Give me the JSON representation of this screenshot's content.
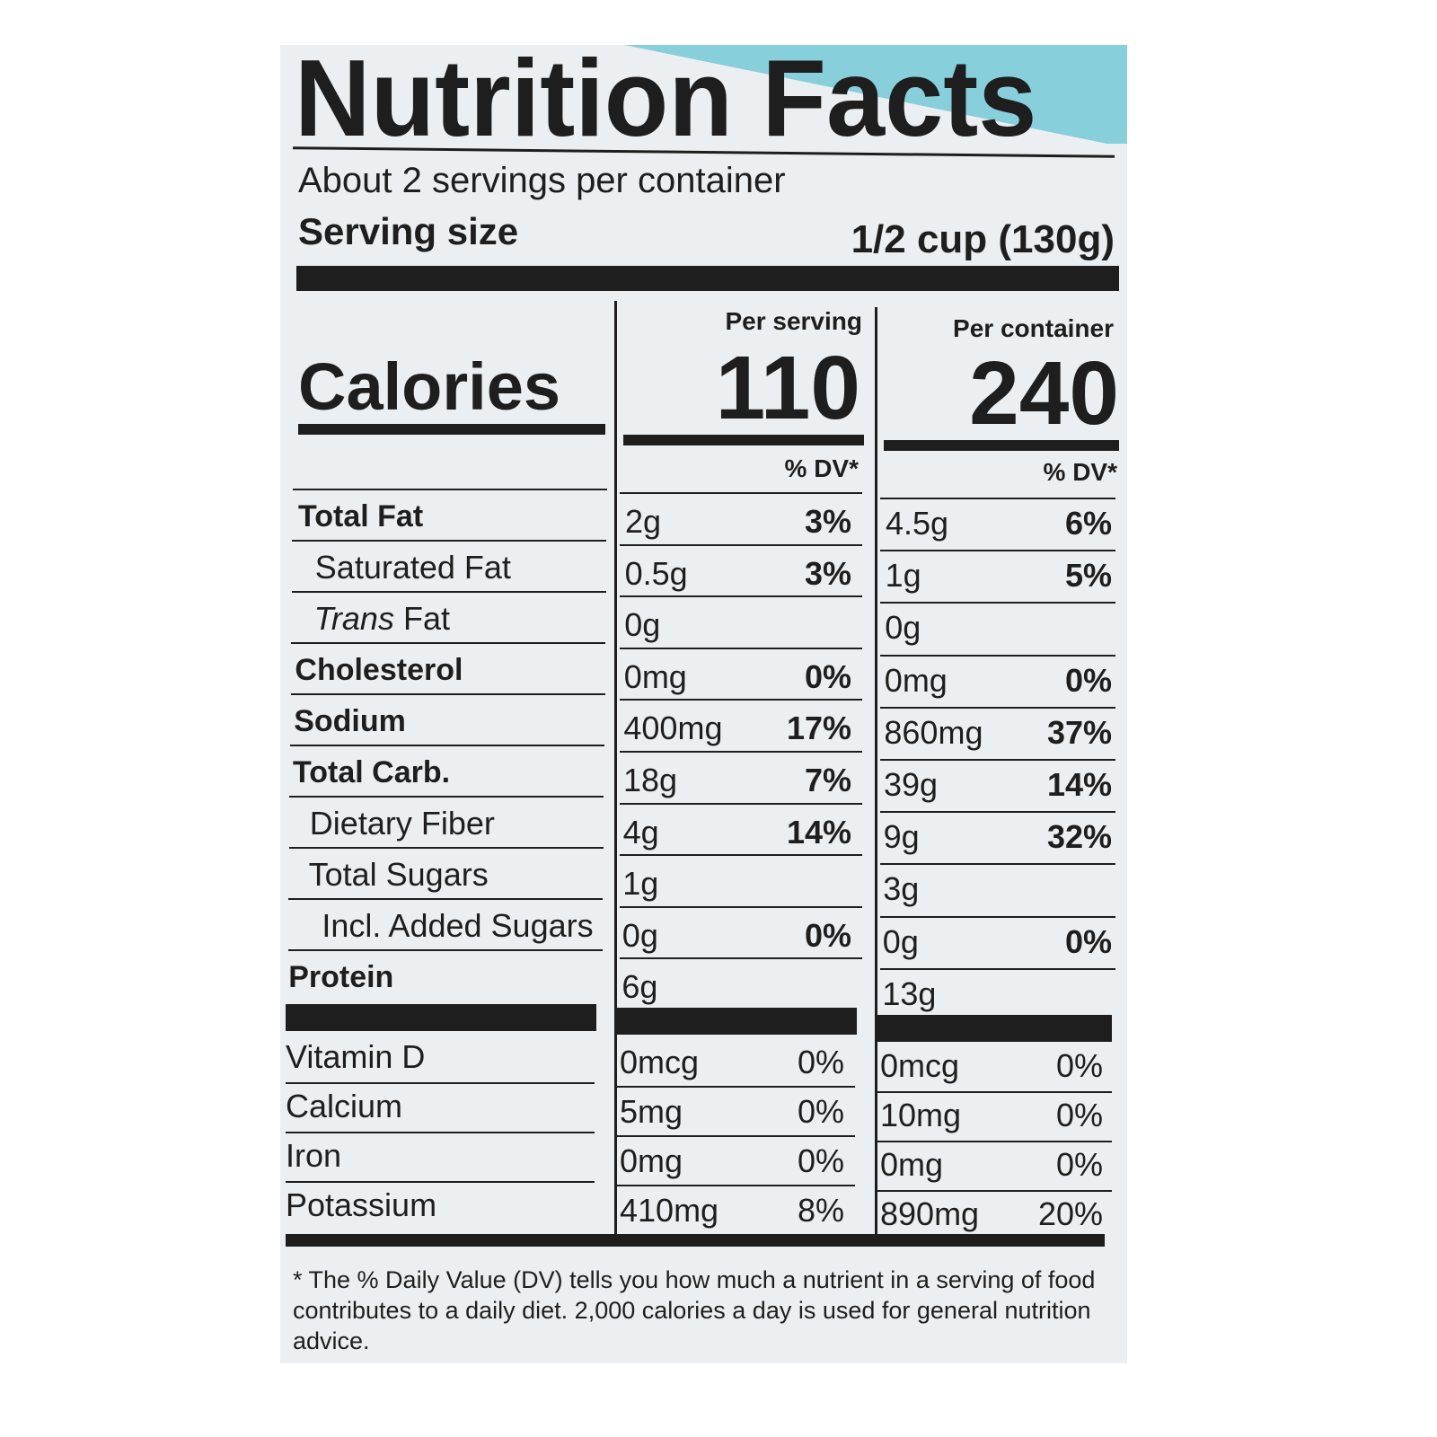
{
  "title": "Nutrition Facts",
  "servings_per_container": "About 2 servings per container",
  "serving_size_label": "Serving size",
  "serving_size_value": "1/2 cup (130g)",
  "columns": {
    "per_serving": "Per serving",
    "per_container": "Per container",
    "dv_label": "% DV*"
  },
  "calories": {
    "label": "Calories",
    "per_serving": "110",
    "per_container": "240"
  },
  "nutrients": [
    {
      "name": "Total Fat",
      "bold": true,
      "indent": 0,
      "s_amt": "2g",
      "s_dv": "3%",
      "c_amt": "4.5g",
      "c_dv": "6%"
    },
    {
      "name": "Saturated Fat",
      "bold": false,
      "indent": 1,
      "s_amt": "0.5g",
      "s_dv": "3%",
      "c_amt": "1g",
      "c_dv": "5%"
    },
    {
      "name": "Trans Fat",
      "bold": false,
      "indent": 1,
      "italic_part": "Trans",
      "s_amt": "0g",
      "s_dv": "",
      "c_amt": "0g",
      "c_dv": ""
    },
    {
      "name": "Cholesterol",
      "bold": true,
      "indent": 0,
      "s_amt": "0mg",
      "s_dv": "0%",
      "c_amt": "0mg",
      "c_dv": "0%"
    },
    {
      "name": "Sodium",
      "bold": true,
      "indent": 0,
      "s_amt": "400mg",
      "s_dv": "17%",
      "c_amt": "860mg",
      "c_dv": "37%"
    },
    {
      "name": "Total Carb.",
      "bold": true,
      "indent": 0,
      "s_amt": "18g",
      "s_dv": "7%",
      "c_amt": "39g",
      "c_dv": "14%"
    },
    {
      "name": "Dietary Fiber",
      "bold": false,
      "indent": 1,
      "s_amt": "4g",
      "s_dv": "14%",
      "c_amt": "9g",
      "c_dv": "32%"
    },
    {
      "name": "Total Sugars",
      "bold": false,
      "indent": 1,
      "s_amt": "1g",
      "s_dv": "",
      "c_amt": "3g",
      "c_dv": ""
    },
    {
      "name": "Incl. Added Sugars",
      "bold": false,
      "indent": 2,
      "s_amt": "0g",
      "s_dv": "0%",
      "c_amt": "0g",
      "c_dv": "0%"
    },
    {
      "name": "Protein",
      "bold": true,
      "indent": 0,
      "s_amt": "6g",
      "s_dv": "",
      "c_amt": "13g",
      "c_dv": ""
    }
  ],
  "vitamins": [
    {
      "name": "Vitamin D",
      "s_amt": "0mcg",
      "s_dv": "0%",
      "c_amt": "0mcg",
      "c_dv": "0%"
    },
    {
      "name": "Calcium",
      "s_amt": "5mg",
      "s_dv": "0%",
      "c_amt": "10mg",
      "c_dv": "0%"
    },
    {
      "name": "Iron",
      "s_amt": "0mg",
      "s_dv": "0%",
      "c_amt": "0mg",
      "c_dv": "0%"
    },
    {
      "name": "Potassium",
      "s_amt": "410mg",
      "s_dv": "8%",
      "c_amt": "890mg",
      "c_dv": "20%"
    }
  ],
  "footnote": "* The % Daily Value (DV) tells you how much a nutrient in a serving of food contributes to a daily diet. 2,000 calories a day is used for general nutrition advice.",
  "colors": {
    "background_accent": "#86cfdb",
    "label_bg": "#eceff1",
    "ink": "#1e1e1e"
  }
}
